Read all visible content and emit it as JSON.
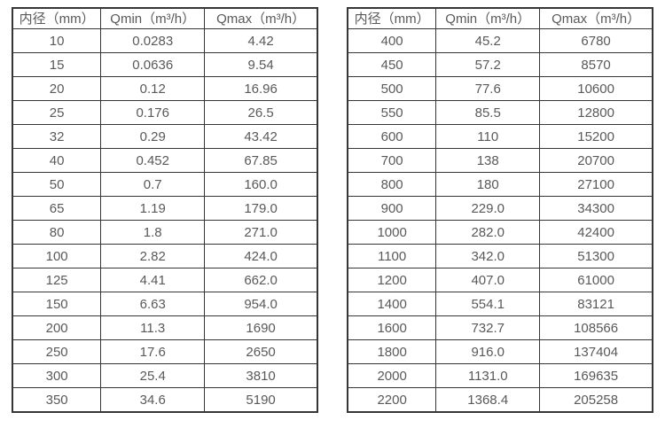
{
  "colors": {
    "background": "#ffffff",
    "border": "#363636",
    "text": "#595959"
  },
  "tables": [
    {
      "name": "flow-table-small-diameters",
      "headers": [
        "内径（mm）",
        "Qmin（m³/h）",
        "Qmax（m³/h）"
      ],
      "rows": [
        [
          "10",
          "0.0283",
          "4.42"
        ],
        [
          "15",
          "0.0636",
          "9.54"
        ],
        [
          "20",
          "0.12",
          "16.96"
        ],
        [
          "25",
          "0.176",
          "26.5"
        ],
        [
          "32",
          "0.29",
          "43.42"
        ],
        [
          "40",
          "0.452",
          "67.85"
        ],
        [
          "50",
          "0.7",
          "160.0"
        ],
        [
          "65",
          "1.19",
          "179.0"
        ],
        [
          "80",
          "1.8",
          "271.0"
        ],
        [
          "100",
          "2.82",
          "424.0"
        ],
        [
          "125",
          "4.41",
          "662.0"
        ],
        [
          "150",
          "6.63",
          "954.0"
        ],
        [
          "200",
          "11.3",
          "1690"
        ],
        [
          "250",
          "17.6",
          "2650"
        ],
        [
          "300",
          "25.4",
          "3810"
        ],
        [
          "350",
          "34.6",
          "5190"
        ]
      ]
    },
    {
      "name": "flow-table-large-diameters",
      "headers": [
        "内径（mm）",
        "Qmin（m³/h）",
        "Qmax（m³/h）"
      ],
      "rows": [
        [
          "400",
          "45.2",
          "6780"
        ],
        [
          "450",
          "57.2",
          "8570"
        ],
        [
          "500",
          "77.6",
          "10600"
        ],
        [
          "550",
          "85.5",
          "12800"
        ],
        [
          "600",
          "110",
          "15200"
        ],
        [
          "700",
          "138",
          "20700"
        ],
        [
          "800",
          "180",
          "27100"
        ],
        [
          "900",
          "229.0",
          "34300"
        ],
        [
          "1000",
          "282.0",
          "42400"
        ],
        [
          "1100",
          "342.0",
          "51300"
        ],
        [
          "1200",
          "407.0",
          "61000"
        ],
        [
          "1400",
          "554.1",
          "83121"
        ],
        [
          "1600",
          "732.7",
          "108566"
        ],
        [
          "1800",
          "916.0",
          "137404"
        ],
        [
          "2000",
          "1131.0",
          "169635"
        ],
        [
          "2200",
          "1368.4",
          "205258"
        ]
      ]
    }
  ]
}
